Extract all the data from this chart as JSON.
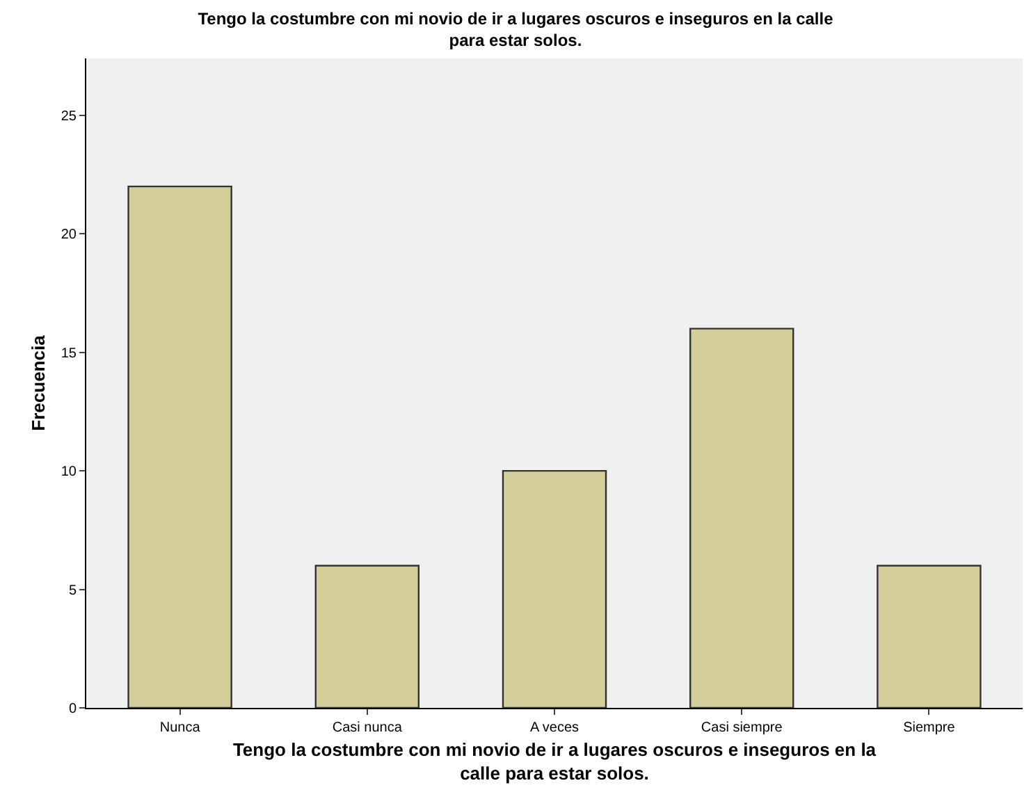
{
  "chart_data": {
    "type": "bar",
    "title": "Tengo la costumbre con mi novio de ir a lugares oscuros e inseguros en la calle\npara estar solos.",
    "xlabel": "Tengo la costumbre con mi novio de ir a lugares oscuros e inseguros en la\ncalle para estar solos.",
    "ylabel": "Frecuencia",
    "categories": [
      "Nunca",
      "Casi nunca",
      "A veces",
      "Casi siempre",
      "Siempre"
    ],
    "values": [
      22,
      6,
      10,
      16,
      6
    ],
    "color": "#d3ce9a",
    "ylim": [
      0,
      27.4
    ],
    "yticks": [
      0,
      5,
      10,
      15,
      20,
      25
    ],
    "grid": false,
    "legend": false
  }
}
